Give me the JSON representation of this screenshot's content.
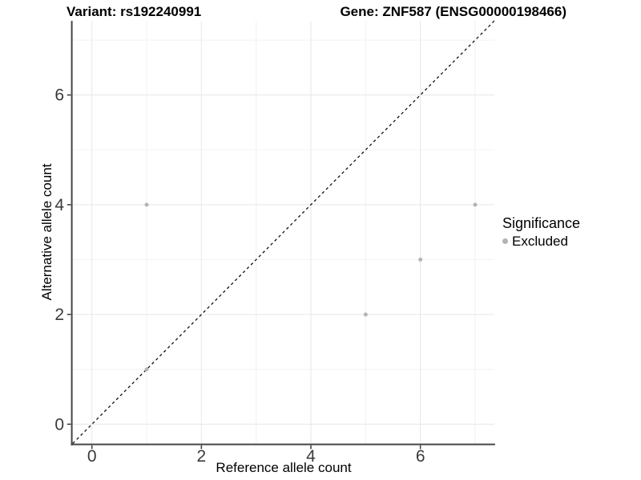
{
  "header": {
    "variant_title": "Variant: rs192240991",
    "gene_title": "Gene: ZNF587 (ENSG00000198466)"
  },
  "legend": {
    "title": "Significance",
    "items": [
      {
        "label": "Excluded",
        "color": "#b4b4b4"
      }
    ]
  },
  "chart_data": {
    "type": "scatter",
    "title": "Variant: rs192240991  Gene: ZNF587 (ENSG00000198466)",
    "xlabel": "Reference allele count",
    "ylabel": "Alternative allele count",
    "xlim": [
      -0.35,
      7.35
    ],
    "ylim": [
      -0.35,
      7.35
    ],
    "xticks": [
      0,
      2,
      4,
      6
    ],
    "yticks": [
      0,
      2,
      4,
      6
    ],
    "x_minor_gridlines": [
      1,
      3,
      5,
      7
    ],
    "y_minor_gridlines": [
      1,
      3,
      5,
      7
    ],
    "grid": true,
    "legend_position": "right-middle",
    "series": [
      {
        "name": "Excluded",
        "color": "#b4b4b4",
        "points": [
          {
            "x": 1,
            "y": 1
          },
          {
            "x": 1,
            "y": 4
          },
          {
            "x": 5,
            "y": 2
          },
          {
            "x": 6,
            "y": 3
          },
          {
            "x": 7,
            "y": 4
          }
        ]
      }
    ],
    "reference_line": {
      "kind": "identity",
      "slope": 1,
      "intercept": 0,
      "style": "dashed",
      "color": "#111111"
    },
    "colors": {
      "background": "#ffffff",
      "grid_major": "#e6e6e6",
      "grid_minor": "#f2f2f2",
      "axis_line": "#454545",
      "tick_text": "#3a3a3a",
      "point": "#b4b4b4"
    }
  }
}
